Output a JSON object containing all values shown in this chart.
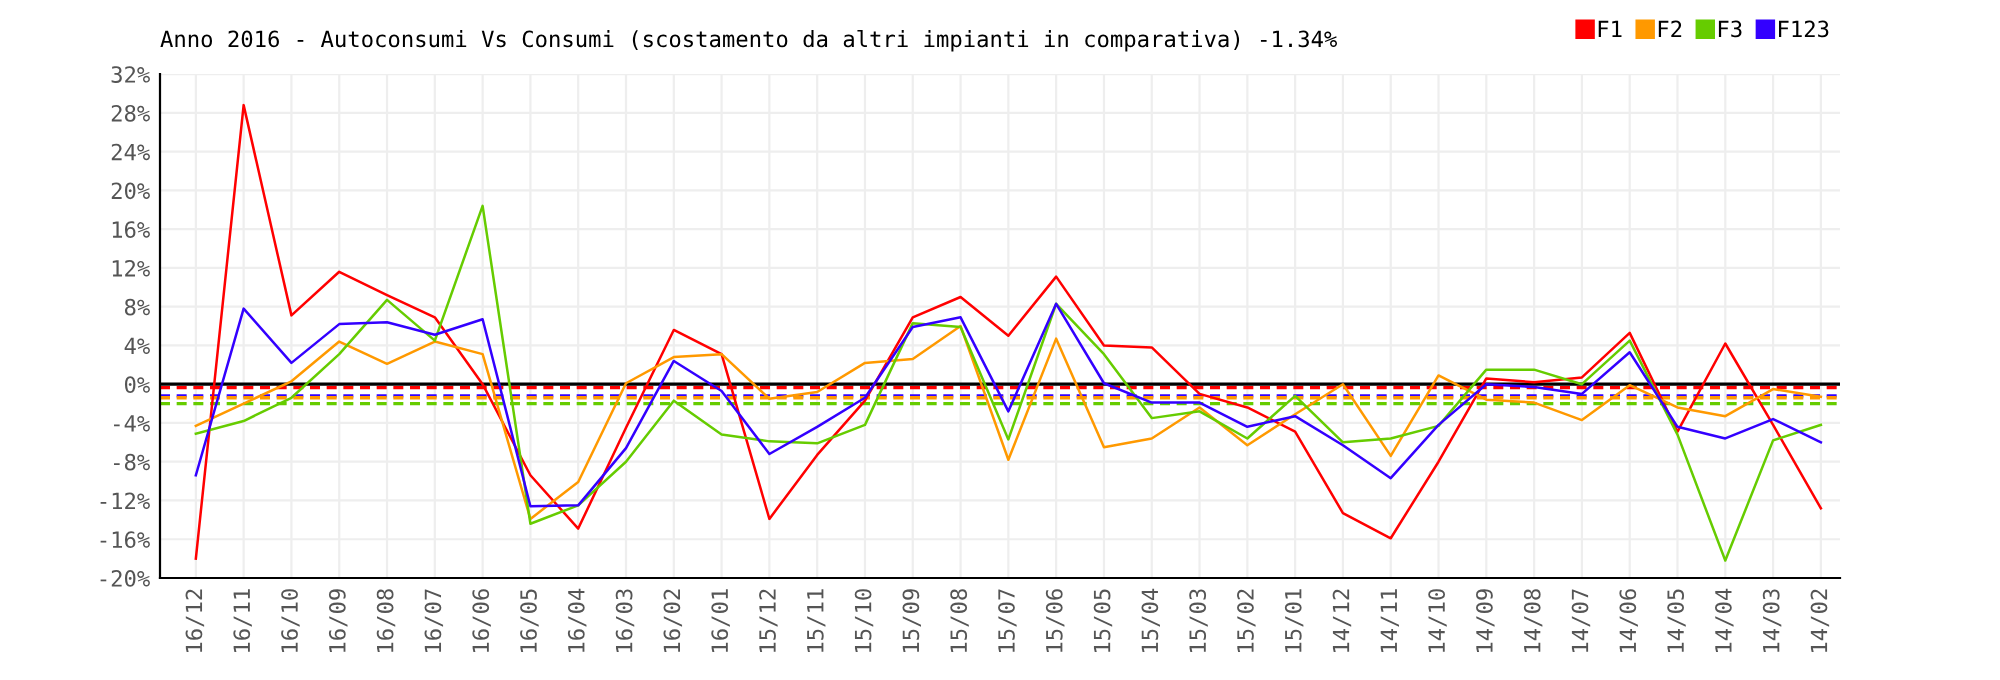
{
  "chart_data": {
    "type": "line",
    "title": "Anno 2016 - Autoconsumi Vs Consumi (scostamento da altri impianti in comparativa) -1.34%",
    "categories": [
      "16/12",
      "16/11",
      "16/10",
      "16/09",
      "16/08",
      "16/07",
      "16/06",
      "16/05",
      "16/04",
      "16/03",
      "16/02",
      "16/01",
      "15/12",
      "15/11",
      "15/10",
      "15/09",
      "15/08",
      "15/07",
      "15/06",
      "15/05",
      "15/04",
      "15/03",
      "15/02",
      "15/01",
      "14/12",
      "14/11",
      "14/10",
      "14/09",
      "14/08",
      "14/07",
      "14/06",
      "14/05",
      "14/04",
      "14/03",
      "14/02"
    ],
    "series": [
      {
        "name": "F1",
        "color": "#ff0000",
        "values": [
          -18.0,
          28.8,
          7.1,
          11.6,
          9.2,
          6.9,
          0.0,
          -9.4,
          -14.9,
          -4.5,
          5.6,
          3.1,
          -13.9,
          -7.3,
          -1.7,
          6.9,
          9.0,
          5.0,
          11.1,
          4.0,
          3.8,
          -1.0,
          -2.4,
          -4.9,
          -13.3,
          -15.9,
          -8.0,
          0.6,
          0.2,
          0.7,
          5.3,
          -4.9,
          4.2,
          -4.2,
          -12.8
        ]
      },
      {
        "name": "F2",
        "color": "#ff9900",
        "values": [
          -4.3,
          -2.0,
          0.3,
          4.4,
          2.1,
          4.4,
          3.1,
          -13.9,
          -10.1,
          0.1,
          2.8,
          3.1,
          -1.5,
          -0.8,
          2.2,
          2.6,
          6.0,
          -7.8,
          4.7,
          -6.5,
          -5.6,
          -2.4,
          -6.3,
          -3.1,
          0.0,
          -7.4,
          0.9,
          -1.6,
          -1.9,
          -3.7,
          -0.1,
          -2.4,
          -3.3,
          -0.5,
          -1.3
        ]
      },
      {
        "name": "F3",
        "color": "#66cc00",
        "values": [
          -5.1,
          -3.8,
          -1.4,
          3.1,
          8.7,
          4.5,
          18.4,
          -14.4,
          -12.5,
          -8.0,
          -1.7,
          -5.2,
          -5.9,
          -6.1,
          -4.2,
          6.3,
          5.9,
          -5.7,
          8.3,
          3.1,
          -3.5,
          -2.8,
          -5.6,
          -1.2,
          -6.0,
          -5.6,
          -4.3,
          1.5,
          1.5,
          0.0,
          4.5,
          -5.2,
          -18.2,
          -5.8,
          -4.2
        ]
      },
      {
        "name": "F123",
        "color": "#3300ff",
        "values": [
          -9.4,
          7.8,
          2.2,
          6.2,
          6.4,
          5.1,
          6.7,
          -12.6,
          -12.5,
          -6.6,
          2.4,
          -0.7,
          -7.2,
          -4.4,
          -1.4,
          5.9,
          6.9,
          -2.8,
          8.3,
          0.1,
          -1.9,
          -1.9,
          -4.4,
          -3.3,
          -6.3,
          -9.7,
          -4.2,
          0.0,
          -0.3,
          -1.0,
          3.3,
          -4.4,
          -5.6,
          -3.6,
          -6.0
        ]
      }
    ],
    "ylim": [
      -20,
      32
    ],
    "yticks": [
      {
        "value": -20,
        "label": "-20%"
      },
      {
        "value": -16,
        "label": "-16%"
      },
      {
        "value": -12,
        "label": "-12%"
      },
      {
        "value": -8,
        "label": "-8%"
      },
      {
        "value": -4,
        "label": "-4%"
      },
      {
        "value": 0,
        "label": "0%"
      },
      {
        "value": 4,
        "label": "4%"
      },
      {
        "value": 8,
        "label": "8%"
      },
      {
        "value": 12,
        "label": "12%"
      },
      {
        "value": 16,
        "label": "16%"
      },
      {
        "value": 20,
        "label": "20%"
      },
      {
        "value": 24,
        "label": "24%"
      },
      {
        "value": 28,
        "label": "28%"
      },
      {
        "value": 32,
        "label": "32%"
      }
    ],
    "ref_lines": [
      {
        "axis": "y",
        "value": 0,
        "color": "#000000",
        "line_style": "solid"
      },
      {
        "axis": "y",
        "value": -0.35,
        "color": "#ff0000",
        "line_style": "dashed"
      },
      {
        "axis": "y",
        "value": -1.2,
        "color": "#3300ff",
        "line_style": "dashed"
      },
      {
        "axis": "y",
        "value": -1.4,
        "color": "#ff9900",
        "line_style": "dashed"
      },
      {
        "axis": "y",
        "value": -2.0,
        "color": "#66cc00",
        "line_style": "dashed"
      }
    ],
    "grid": true,
    "legend": "top right",
    "marker": "none",
    "line_style": "solid"
  }
}
